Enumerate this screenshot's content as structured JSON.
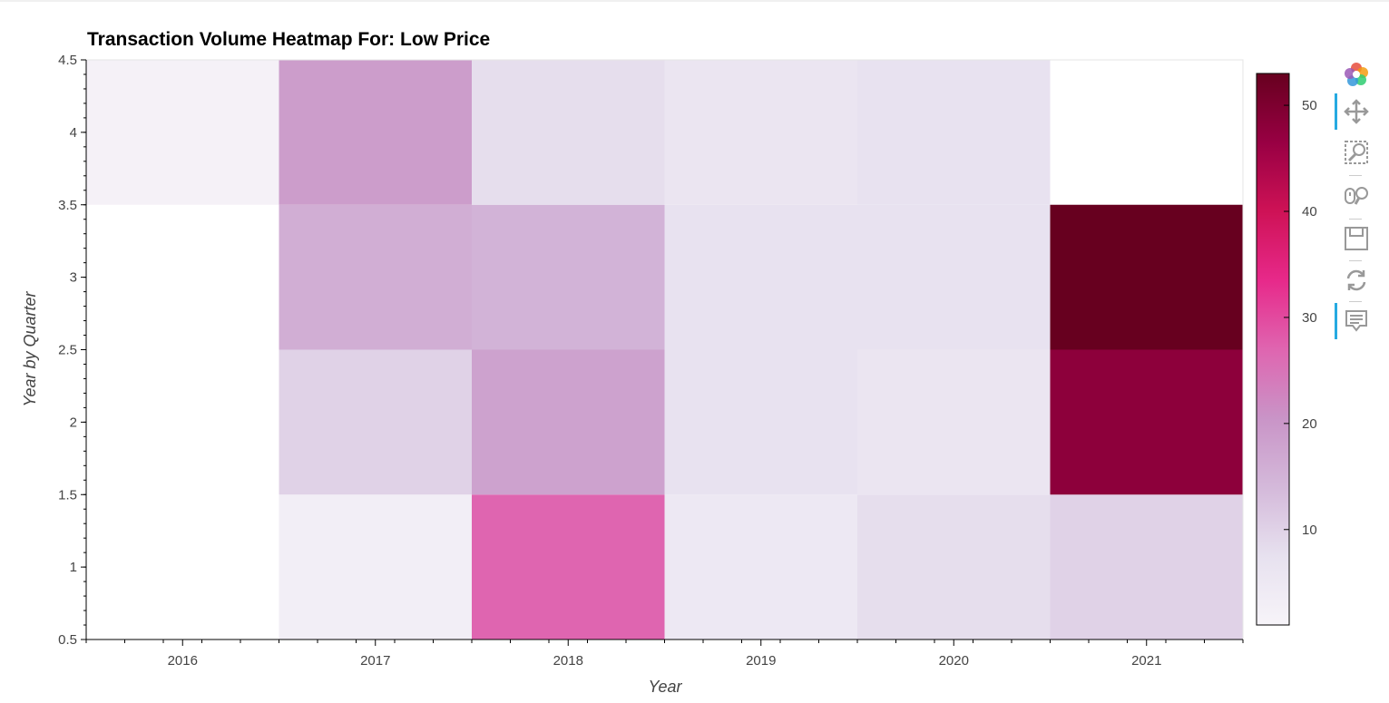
{
  "chart_data": {
    "type": "heatmap",
    "title": "Transaction Volume Heatmap For: Low Price",
    "xlabel": "Year",
    "ylabel": "Year by Quarter",
    "x_categories": [
      "2016",
      "2017",
      "2018",
      "2019",
      "2020",
      "2021"
    ],
    "y_categories": [
      1,
      2,
      3,
      4
    ],
    "ylim": [
      0.5,
      4.5
    ],
    "y_ticks": [
      "0.5",
      "1",
      "1.5",
      "2",
      "2.5",
      "3",
      "3.5",
      "4",
      "4.5"
    ],
    "cells": [
      {
        "x": "2016",
        "y": 4,
        "value": 2
      },
      {
        "x": "2017",
        "y": 1,
        "value": 3
      },
      {
        "x": "2017",
        "y": 2,
        "value": 10
      },
      {
        "x": "2017",
        "y": 3,
        "value": 16
      },
      {
        "x": "2017",
        "y": 4,
        "value": 19
      },
      {
        "x": "2018",
        "y": 1,
        "value": 27
      },
      {
        "x": "2018",
        "y": 2,
        "value": 18
      },
      {
        "x": "2018",
        "y": 3,
        "value": 15
      },
      {
        "x": "2018",
        "y": 4,
        "value": 8
      },
      {
        "x": "2019",
        "y": 1,
        "value": 5
      },
      {
        "x": "2019",
        "y": 2,
        "value": 7
      },
      {
        "x": "2019",
        "y": 3,
        "value": 7
      },
      {
        "x": "2019",
        "y": 4,
        "value": 6
      },
      {
        "x": "2020",
        "y": 1,
        "value": 8
      },
      {
        "x": "2020",
        "y": 2,
        "value": 6
      },
      {
        "x": "2020",
        "y": 3,
        "value": 7
      },
      {
        "x": "2020",
        "y": 4,
        "value": 7
      },
      {
        "x": "2021",
        "y": 1,
        "value": 10
      },
      {
        "x": "2021",
        "y": 2,
        "value": 48
      },
      {
        "x": "2021",
        "y": 3,
        "value": 53
      }
    ],
    "colorbar": {
      "range": [
        1,
        53
      ],
      "ticks": [
        "10",
        "20",
        "30",
        "40",
        "50"
      ],
      "palette": [
        "#f7f4f9",
        "#e7e1ef",
        "#d4b9da",
        "#c994c7",
        "#df65b0",
        "#e7298a",
        "#ce1256",
        "#980043",
        "#67001f"
      ]
    },
    "grid": false
  },
  "toolbar": {
    "tools": [
      "bokeh-logo-icon",
      "pan-icon",
      "box-zoom-icon",
      "wheel-zoom-icon",
      "save-icon",
      "reset-icon",
      "hover-icon"
    ]
  }
}
